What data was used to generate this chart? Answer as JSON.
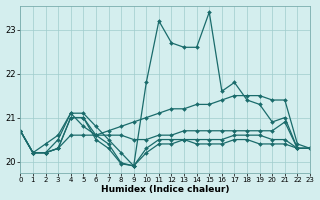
{
  "xlabel": "Humidex (Indice chaleur)",
  "bg_color": "#d4eeee",
  "grid_color": "#a0cccc",
  "line_color": "#1a6b6b",
  "xlim": [
    0,
    23
  ],
  "ylim": [
    19.75,
    23.55
  ],
  "yticks": [
    20,
    21,
    22,
    23
  ],
  "xticks": [
    0,
    1,
    2,
    3,
    4,
    5,
    6,
    7,
    8,
    9,
    10,
    11,
    12,
    13,
    14,
    15,
    16,
    17,
    18,
    19,
    20,
    21,
    22,
    23
  ],
  "series": [
    {
      "x": [
        0,
        1,
        2,
        3,
        4,
        5,
        6,
        7,
        8,
        9,
        10,
        11,
        12,
        13,
        14,
        15,
        16,
        17,
        18,
        19,
        20,
        21,
        22,
        23
      ],
      "y": [
        20.7,
        20.2,
        20.2,
        20.5,
        21.1,
        21.1,
        20.8,
        20.5,
        20.2,
        19.9,
        21.8,
        23.2,
        22.7,
        22.6,
        22.6,
        23.4,
        21.6,
        21.8,
        21.4,
        21.3,
        20.9,
        21.0,
        20.3,
        20.3
      ]
    },
    {
      "x": [
        0,
        1,
        2,
        3,
        4,
        5,
        6,
        7,
        8,
        9,
        10,
        11,
        12,
        13,
        14,
        15,
        16,
        17,
        18,
        19,
        20,
        21,
        22,
        23
      ],
      "y": [
        20.7,
        20.2,
        20.4,
        20.6,
        21.1,
        20.8,
        20.6,
        20.7,
        20.8,
        20.9,
        21.0,
        21.1,
        21.2,
        21.2,
        21.3,
        21.3,
        21.4,
        21.5,
        21.5,
        21.5,
        21.4,
        21.4,
        20.4,
        20.3
      ]
    },
    {
      "x": [
        0,
        1,
        2,
        3,
        4,
        5,
        6,
        7,
        8,
        9,
        10,
        11,
        12,
        13,
        14,
        15,
        16,
        17,
        18,
        19,
        20,
        21,
        22,
        23
      ],
      "y": [
        20.7,
        20.2,
        20.2,
        20.3,
        21.0,
        21.0,
        20.5,
        20.3,
        19.95,
        19.9,
        20.3,
        20.5,
        20.5,
        20.5,
        20.5,
        20.5,
        20.5,
        20.6,
        20.6,
        20.6,
        20.5,
        20.5,
        20.3,
        20.3
      ]
    },
    {
      "x": [
        0,
        1,
        2,
        3,
        4,
        5,
        6,
        7,
        8,
        9,
        10,
        11,
        12,
        13,
        14,
        15,
        16,
        17,
        18,
        19,
        20,
        21,
        22,
        23
      ],
      "y": [
        20.7,
        20.2,
        20.2,
        20.3,
        20.6,
        20.6,
        20.6,
        20.6,
        20.6,
        20.5,
        20.5,
        20.6,
        20.6,
        20.7,
        20.7,
        20.7,
        20.7,
        20.7,
        20.7,
        20.7,
        20.7,
        20.9,
        20.3,
        20.3
      ]
    },
    {
      "x": [
        0,
        1,
        2,
        3,
        4,
        5,
        6,
        7,
        8,
        9,
        10,
        11,
        12,
        13,
        14,
        15,
        16,
        17,
        18,
        19,
        20,
        21,
        22,
        23
      ],
      "y": [
        20.7,
        20.2,
        20.2,
        20.3,
        21.0,
        21.0,
        20.6,
        20.4,
        19.97,
        19.9,
        20.2,
        20.4,
        20.4,
        20.5,
        20.4,
        20.4,
        20.4,
        20.5,
        20.5,
        20.4,
        20.4,
        20.4,
        20.3,
        20.3
      ]
    }
  ]
}
